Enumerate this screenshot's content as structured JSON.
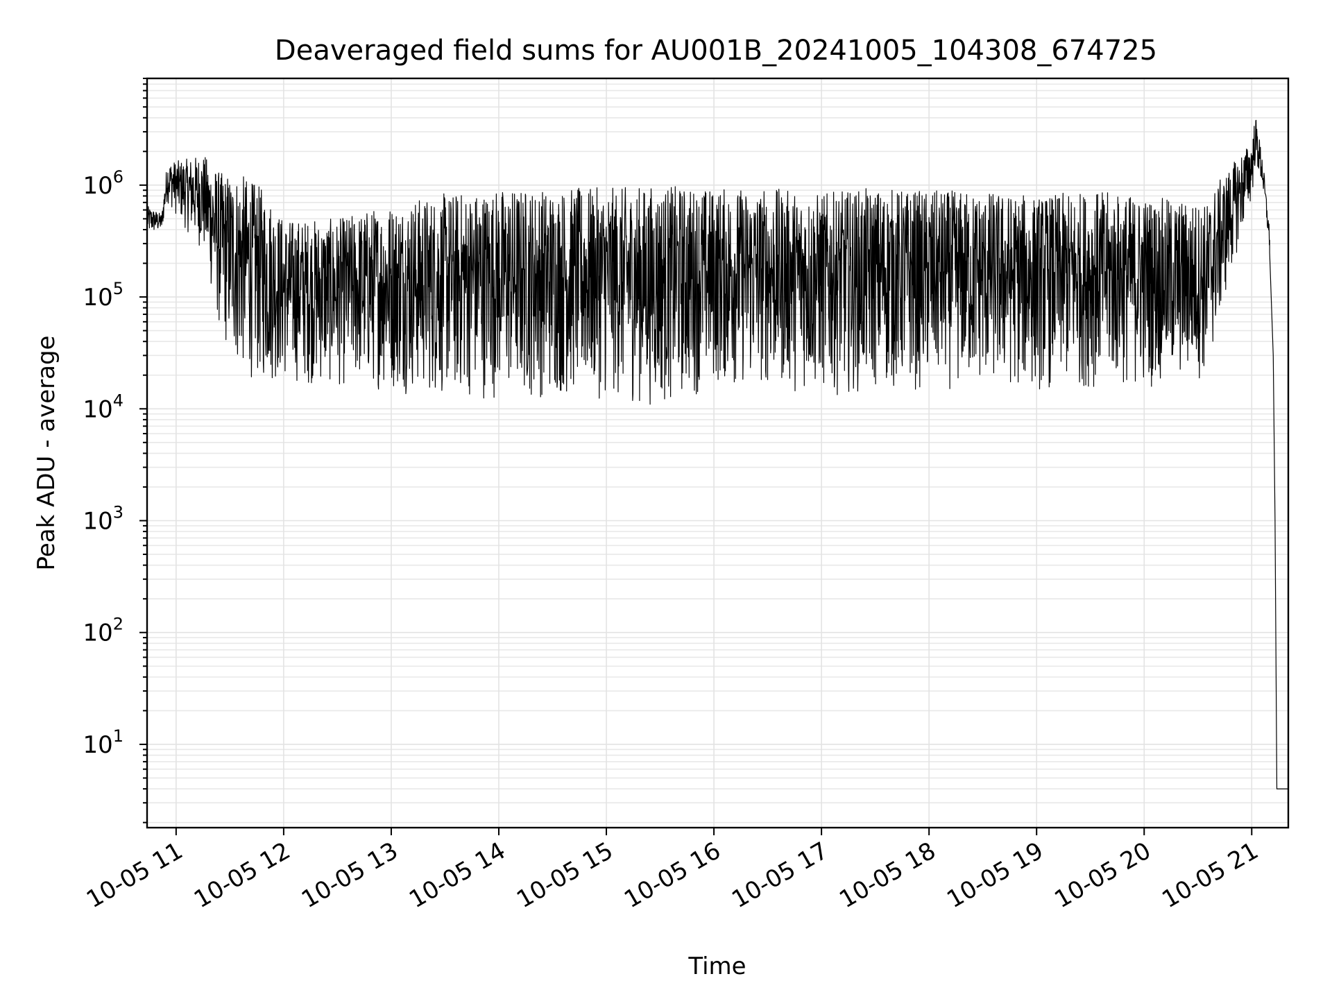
{
  "chart_data": {
    "type": "line",
    "title": "Deaveraged field sums for AU001B_20241005_104308_674725",
    "xlabel": "Time",
    "ylabel": "Peak ADU - average",
    "yscale": "log",
    "ylim": [
      1.8,
      9000000
    ],
    "xlim_hours": [
      10.73,
      21.34
    ],
    "grid": true,
    "x_tick_labels": [
      "10-05 11",
      "10-05 12",
      "10-05 13",
      "10-05 14",
      "10-05 15",
      "10-05 16",
      "10-05 17",
      "10-05 18",
      "10-05 19",
      "10-05 20",
      "10-05 21"
    ],
    "x_tick_hours": [
      11,
      12,
      13,
      14,
      15,
      16,
      17,
      18,
      19,
      20,
      21
    ],
    "y_tick_exponents": [
      1,
      2,
      3,
      4,
      5,
      6
    ],
    "y_tick_base": "10",
    "series": [
      {
        "envelope": [
          {
            "t": "10-05 10:44",
            "low": 350000,
            "high": 650000
          },
          {
            "t": "10-05 10:52",
            "low": 380000,
            "high": 550000
          },
          {
            "t": "10-05 10:55",
            "low": 700000,
            "high": 1600000
          },
          {
            "t": "10-05 11:05",
            "low": 400000,
            "high": 1700000
          },
          {
            "t": "10-05 11:15",
            "low": 250000,
            "high": 1900000
          },
          {
            "t": "10-05 11:25",
            "low": 40000,
            "high": 1300000
          },
          {
            "t": "10-05 11:35",
            "low": 20000,
            "high": 1300000
          },
          {
            "t": "10-05 11:50",
            "low": 16000,
            "high": 900000
          },
          {
            "t": "10-05 12:00",
            "low": 17000,
            "high": 500000
          },
          {
            "t": "10-05 12:15",
            "low": 16000,
            "high": 500000
          },
          {
            "t": "10-05 12:30",
            "low": 15000,
            "high": 500000
          },
          {
            "t": "10-05 12:45",
            "low": 15000,
            "high": 600000
          },
          {
            "t": "10-05 13:00",
            "low": 14000,
            "high": 700000
          },
          {
            "t": "10-05 13:30",
            "low": 12000,
            "high": 850000
          },
          {
            "t": "10-05 14:00",
            "low": 12000,
            "high": 950000
          },
          {
            "t": "10-05 14:30",
            "low": 12000,
            "high": 950000
          },
          {
            "t": "10-05 15:00",
            "low": 12000,
            "high": 950000
          },
          {
            "t": "10-05 15:30",
            "low": 10000,
            "high": 1000000
          },
          {
            "t": "10-05 16:00",
            "low": 15000,
            "high": 950000
          },
          {
            "t": "10-05 16:30",
            "low": 15000,
            "high": 950000
          },
          {
            "t": "10-05 17:00",
            "low": 13000,
            "high": 850000
          },
          {
            "t": "10-05 17:30",
            "low": 14000,
            "high": 950000
          },
          {
            "t": "10-05 18:00",
            "low": 14000,
            "high": 900000
          },
          {
            "t": "10-05 18:30",
            "low": 15000,
            "high": 900000
          },
          {
            "t": "10-05 19:00",
            "low": 14000,
            "high": 800000
          },
          {
            "t": "10-05 19:30",
            "low": 15000,
            "high": 900000
          },
          {
            "t": "10-05 20:00",
            "low": 15000,
            "high": 800000
          },
          {
            "t": "10-05 20:35",
            "low": 18000,
            "high": 700000
          },
          {
            "t": "10-05 20:40",
            "low": 40000,
            "high": 1000000
          },
          {
            "t": "10-05 20:50",
            "low": 200000,
            "high": 1600000
          },
          {
            "t": "10-05 21:00",
            "low": 700000,
            "high": 2500000
          },
          {
            "t": "10-05 21:02",
            "low": 1500000,
            "high": 4300000
          },
          {
            "t": "10-05 21:06",
            "low": 900000,
            "high": 1800000
          },
          {
            "t": "10-05 21:10",
            "low": 250000,
            "high": 400000
          }
        ],
        "tail": [
          {
            "t": "10-05 21:10",
            "y": 250000
          },
          {
            "t": "10-05 21:12",
            "y": 30000
          },
          {
            "t": "10-05 21:13",
            "y": 1000
          },
          {
            "t": "10-05 21:14",
            "y": 4
          },
          {
            "t": "10-05 21:20",
            "y": 4
          }
        ]
      }
    ]
  }
}
